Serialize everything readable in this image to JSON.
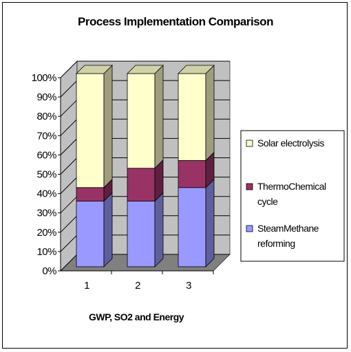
{
  "chart_data": {
    "type": "bar",
    "stacked": true,
    "stack_mode": "percent",
    "three_d": true,
    "title": "Process Implementation Comparison",
    "xlabel": "GWP, SO2 and Energy",
    "ylabel": "",
    "categories": [
      "1",
      "2",
      "3"
    ],
    "y_ticks": [
      "0%",
      "10%",
      "20%",
      "30%",
      "40%",
      "50%",
      "60%",
      "70%",
      "80%",
      "90%",
      "100%"
    ],
    "ylim": [
      0,
      100
    ],
    "grid": true,
    "legend_position": "right",
    "series": [
      {
        "name": "SteamMethane reforming",
        "values": [
          34,
          34,
          41
        ],
        "color": "#9999ff"
      },
      {
        "name": "ThermoChemical cycle",
        "values": [
          7,
          17,
          14
        ],
        "color": "#993366"
      },
      {
        "name": "Solar electrolysis",
        "values": [
          59,
          49,
          45
        ],
        "color": "#ffffcc"
      }
    ],
    "legend": [
      {
        "lines": [
          "Solar electrolysis"
        ],
        "series_index": 2
      },
      {
        "lines": [
          "ThermoChemical",
          "cycle"
        ],
        "series_index": 1
      },
      {
        "lines": [
          "SteamMethane",
          "reforming"
        ],
        "series_index": 0
      }
    ],
    "colors": {
      "wall": "#c0c0c0",
      "floor": "#808080",
      "grid": "#000000"
    }
  }
}
